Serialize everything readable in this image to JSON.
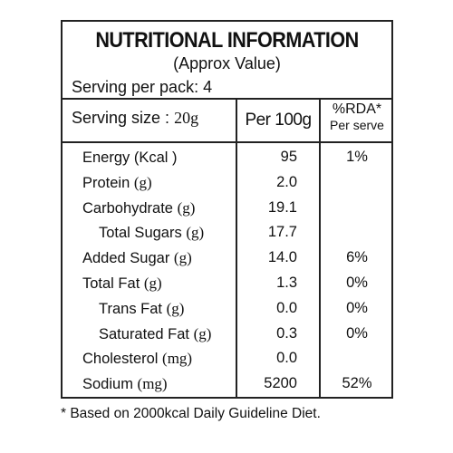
{
  "header": {
    "title": "NUTRITIONAL INFORMATION",
    "subtitle": "(Approx Value)",
    "serving_per_pack": "Serving per pack: 4",
    "serving_size_label": "Serving size :",
    "serving_size_value": "20g",
    "col_per100": "Per 100g",
    "col_rda": "%RDA*",
    "col_rda_sub": "Per serve"
  },
  "rows": [
    {
      "label": "Energy (Kcal )",
      "unit": "",
      "per100": "95",
      "rda": "1%"
    },
    {
      "label": "Protein ",
      "unit": "(g)",
      "per100": "2.0",
      "rda": ""
    },
    {
      "label": "Carbohydrate ",
      "unit": "(g)",
      "per100": "19.1",
      "rda": ""
    },
    {
      "label": "Total Sugars ",
      "unit": "(g)",
      "per100": "17.7",
      "rda": ""
    },
    {
      "label": "Added Sugar ",
      "unit": "(g)",
      "per100": "14.0",
      "rda": "6%"
    },
    {
      "label": "Total Fat ",
      "unit": "(g)",
      "per100": "1.3",
      "rda": "0%"
    },
    {
      "label": "Trans Fat ",
      "unit": "(g)",
      "per100": "0.0",
      "rda": "0%"
    },
    {
      "label": "Saturated Fat ",
      "unit": "(g)",
      "per100": "0.3",
      "rda": "0%"
    },
    {
      "label": "Cholesterol ",
      "unit": "(mg)",
      "per100": "0.0",
      "rda": ""
    },
    {
      "label": "Sodium ",
      "unit": "(mg)",
      "per100": "5200",
      "rda": "52%"
    }
  ],
  "footnote": "* Based on 2000kcal Daily Guideline Diet."
}
